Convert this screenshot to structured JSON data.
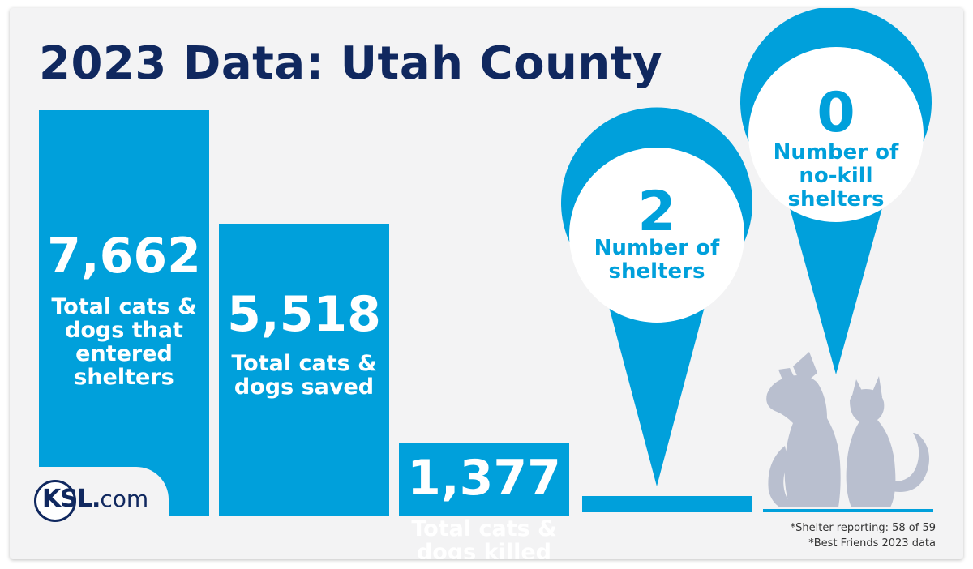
{
  "title": "2023 Data: Utah County",
  "chart_data": {
    "type": "bar",
    "categories": [
      "Total cats & dogs that entered shelters",
      "Total cats & dogs saved",
      "Total cats & dogs killed"
    ],
    "values": [
      7662,
      5518,
      1377
    ],
    "value_labels": [
      "7,662",
      "5,518",
      "1,377"
    ],
    "label_lines": [
      [
        "Total cats &",
        "dogs that",
        "entered",
        "shelters"
      ],
      [
        "Total cats &",
        "dogs saved"
      ],
      [
        "Total cats &",
        "dogs killed"
      ]
    ],
    "ylim": [
      0,
      7662
    ],
    "bar_color": "#00a0db"
  },
  "pins": [
    {
      "value": "2",
      "label_lines": [
        "Number of",
        "shelters"
      ]
    },
    {
      "value": "0",
      "label_lines": [
        "Number of",
        "no-kill",
        "shelters"
      ]
    }
  ],
  "footnotes": [
    "*Shelter reporting: 58 of 59",
    "*Best Friends 2023 data"
  ],
  "logo": {
    "brand": "KSL",
    "dot": ".",
    "suffix": "com"
  },
  "colors": {
    "accent": "#00a0db",
    "navy": "#10285f",
    "background": "#f3f3f4",
    "silhouette": "#b9bfcf"
  }
}
